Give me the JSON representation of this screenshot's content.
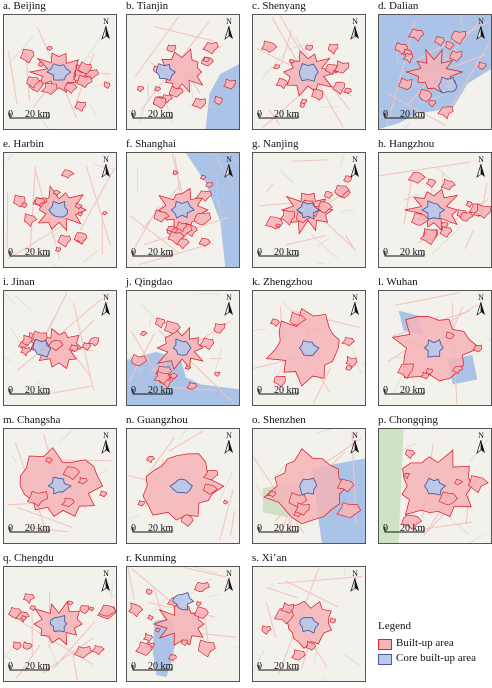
{
  "panels": [
    {
      "label": "a. Beijing",
      "type": "scattered",
      "core": "small-center"
    },
    {
      "label": "b. Tianjin",
      "type": "scattered-coast",
      "core": "west"
    },
    {
      "label": "c. Shenyang",
      "type": "scattered",
      "core": "center"
    },
    {
      "label": "d. Dalian",
      "type": "coastal-sea",
      "core": "southeast"
    },
    {
      "label": "e. Harbin",
      "type": "scattered",
      "core": "center"
    },
    {
      "label": "f. Shanghai",
      "type": "coastal-large",
      "core": "center"
    },
    {
      "label": "g. Nanjing",
      "type": "corridor",
      "core": "center"
    },
    {
      "label": "h. Hangzhou",
      "type": "scattered",
      "core": "center"
    },
    {
      "label": "i. Jinan",
      "type": "linear",
      "core": "west"
    },
    {
      "label": "j. Qingdao",
      "type": "bay",
      "core": "center"
    },
    {
      "label": "k. Zhengzhou",
      "type": "dense",
      "core": "center"
    },
    {
      "label": "l. Wuhan",
      "type": "dense-lakes",
      "core": "center"
    },
    {
      "label": "m. Changsha",
      "type": "dense",
      "core": "center"
    },
    {
      "label": "n. Guangzhou",
      "type": "dense",
      "core": "center"
    },
    {
      "label": "o. Shenzhen",
      "type": "delta",
      "core": "center"
    },
    {
      "label": "p. Chongqing",
      "type": "mountain",
      "core": "center"
    },
    {
      "label": "q. Chengdu",
      "type": "scattered",
      "core": "center"
    },
    {
      "label": "r. Kunming",
      "type": "lake",
      "core": "north"
    },
    {
      "label": "s. Xi’an",
      "type": "compact",
      "core": "center"
    }
  ],
  "north_label": "N",
  "scale": {
    "zero": "0",
    "distance": "20 km"
  },
  "legend": {
    "title": "Legend",
    "items": [
      {
        "label": "Built-up area",
        "color": "#f4b4b8",
        "stroke": "#d9252f"
      },
      {
        "label": "Core built-up area",
        "color": "#b8c9ea",
        "stroke": "#4a5a9a"
      }
    ]
  },
  "colors": {
    "land": "#f3f1ec",
    "water": "#aac3e6",
    "road": "#f2c4c4",
    "minor_road": "#ffffff",
    "green": "#cfe3c4"
  }
}
